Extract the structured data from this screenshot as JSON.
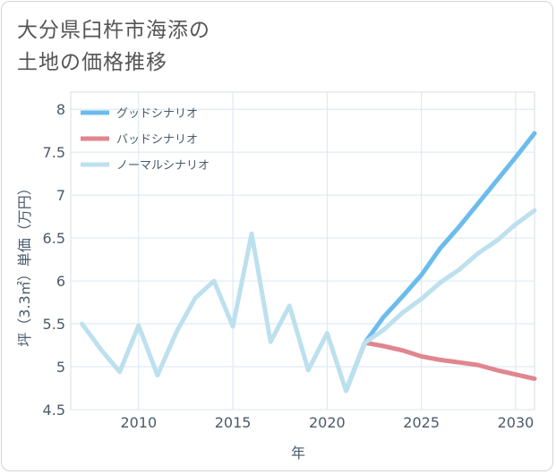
{
  "title": {
    "line1": "大分県臼杵市海添の",
    "line2": "土地の価格推移"
  },
  "chart_data": {
    "type": "line",
    "title": "大分県臼杵市海添の土地の価格推移",
    "xlabel": "年",
    "ylabel": "坪（3.3㎡）単価（万円）",
    "xlim": [
      2006.4,
      2031
    ],
    "ylim": [
      4.5,
      8.2
    ],
    "xticks": [
      2010,
      2015,
      2020,
      2025,
      2030
    ],
    "yticks": [
      4.5,
      5,
      5.5,
      6,
      6.5,
      7,
      7.5,
      8
    ],
    "xtick_labels": [
      "2010",
      "2015",
      "2020",
      "2025",
      "2030"
    ],
    "ytick_labels": [
      "4.5",
      "5",
      "5.5",
      "6",
      "6.5",
      "7",
      "7.5",
      "8"
    ],
    "grid": true,
    "legend_position": "top-left",
    "series": [
      {
        "name": "グッドシナリオ",
        "color": "#6bbcec",
        "x": [
          2021,
          2022,
          2023,
          2024,
          2025,
          2026,
          2027,
          2028,
          2029,
          2030,
          2031
        ],
        "y": [
          4.72,
          5.28,
          5.58,
          5.82,
          6.07,
          6.38,
          6.63,
          6.9,
          7.17,
          7.44,
          7.72
        ]
      },
      {
        "name": "バッドシナリオ",
        "color": "#e0868f",
        "x": [
          2021,
          2022,
          2023,
          2024,
          2025,
          2026,
          2027,
          2028,
          2029,
          2030,
          2031
        ],
        "y": [
          4.72,
          5.28,
          5.24,
          5.19,
          5.12,
          5.08,
          5.05,
          5.02,
          4.96,
          4.91,
          4.86
        ]
      },
      {
        "name": "ノーマルシナリオ",
        "color": "#bde0ee",
        "x": [
          2007,
          2008,
          2009,
          2010,
          2011,
          2012,
          2013,
          2014,
          2015,
          2016,
          2017,
          2018,
          2019,
          2020,
          2021,
          2022,
          2023,
          2024,
          2025,
          2026,
          2027,
          2028,
          2029,
          2030,
          2031
        ],
        "y": [
          5.5,
          5.2,
          4.94,
          5.48,
          4.9,
          5.4,
          5.8,
          6.0,
          5.47,
          6.55,
          5.29,
          5.71,
          4.96,
          5.39,
          4.72,
          5.28,
          5.43,
          5.63,
          5.79,
          5.98,
          6.13,
          6.32,
          6.47,
          6.66,
          6.82
        ]
      }
    ]
  }
}
